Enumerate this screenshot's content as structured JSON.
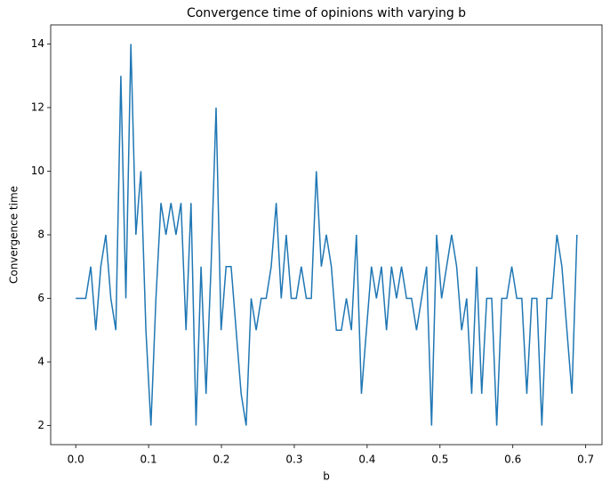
{
  "chart_data": {
    "type": "line",
    "title": "Convergence time of opinions with varying b",
    "xlabel": "b",
    "ylabel": "Convergence time",
    "x": [
      0,
      0.00688,
      0.01376,
      0.02064,
      0.02752,
      0.0344,
      0.04128,
      0.04816,
      0.05504,
      0.06192,
      0.0688,
      0.07568,
      0.08256,
      0.08944,
      0.09632,
      0.1032,
      0.11008,
      0.11696,
      0.12384,
      0.13072,
      0.1376,
      0.14448,
      0.15136,
      0.15824,
      0.16512,
      0.172,
      0.17888,
      0.18576,
      0.19264,
      0.19952,
      0.2064,
      0.21328,
      0.22016,
      0.22704,
      0.23392,
      0.2408,
      0.24768,
      0.25456,
      0.26144,
      0.26832,
      0.2752,
      0.28208,
      0.28896,
      0.29584,
      0.30272,
      0.3096,
      0.31648,
      0.32336,
      0.33024,
      0.33712,
      0.344,
      0.35088,
      0.35776,
      0.36464,
      0.37152,
      0.3784,
      0.38528,
      0.39216,
      0.39904,
      0.40592,
      0.4128,
      0.41968,
      0.42656,
      0.43344,
      0.44032,
      0.4472,
      0.45408,
      0.46096,
      0.46784,
      0.47472,
      0.4816,
      0.48848,
      0.49536,
      0.50224,
      0.50912,
      0.516,
      0.52288,
      0.52976,
      0.53664,
      0.54352,
      0.5504,
      0.55728,
      0.56416,
      0.57104,
      0.57792,
      0.5848,
      0.59168,
      0.59856,
      0.60544,
      0.61232,
      0.6192,
      0.62608,
      0.63296,
      0.63984,
      0.64672,
      0.6536,
      0.66048,
      0.66736,
      0.67424,
      0.68112,
      0.688
    ],
    "series": [
      {
        "color": "#1f77b4",
        "values": [
          6,
          6,
          6,
          7,
          5,
          7,
          8,
          6,
          5,
          13,
          6,
          14,
          8,
          10,
          5,
          2,
          6,
          9,
          8,
          9,
          8,
          9,
          5,
          9,
          2,
          7,
          3,
          7,
          12,
          5,
          7,
          7,
          5,
          3,
          2,
          6,
          5,
          6,
          6,
          7,
          9,
          6,
          8,
          6,
          6,
          7,
          6,
          6,
          10,
          7,
          8,
          7,
          5,
          5,
          6,
          5,
          8,
          3,
          5,
          7,
          6,
          7,
          5,
          7,
          6,
          7,
          6,
          6,
          5,
          6,
          7,
          2,
          8,
          6,
          7,
          8,
          7,
          5,
          6,
          3,
          7,
          3,
          6,
          6,
          2,
          6,
          6,
          7,
          6,
          6,
          3,
          6,
          6,
          2,
          6,
          6,
          8,
          7,
          5,
          3,
          8
        ]
      }
    ],
    "xlim": [
      -0.0344,
      0.7224
    ],
    "ylim": [
      1.4,
      14.6
    ],
    "xticks": [
      {
        "value": 0,
        "label": "0.0"
      },
      0.1,
      0.2,
      0.3,
      0.4,
      0.5,
      0.6,
      0.7
    ],
    "yticks": [
      2,
      4,
      6,
      8,
      10,
      12,
      14
    ]
  }
}
